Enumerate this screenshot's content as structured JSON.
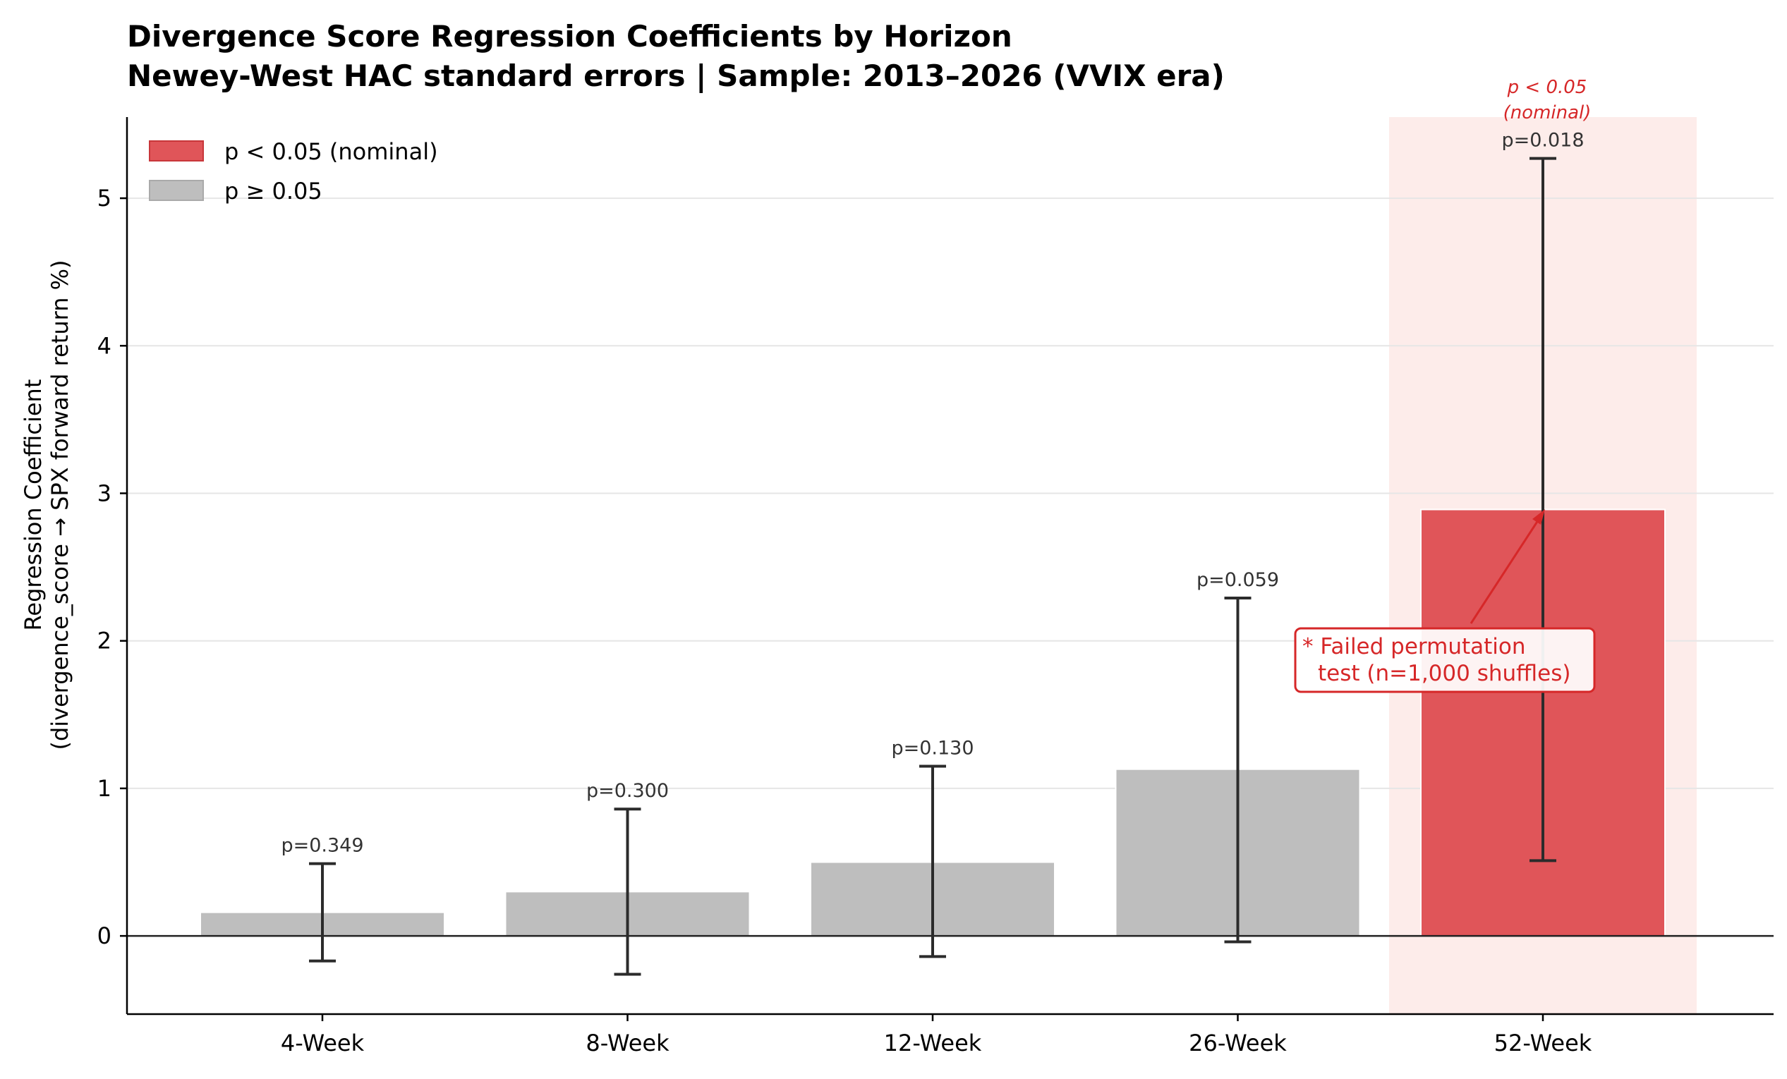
{
  "chart_data": {
    "type": "bar",
    "title": "Divergence Score Regression Coefficients by Horizon",
    "subtitle": "Newey-West HAC standard errors  |  Sample: 2013–2026 (VVIX era)",
    "ylabel_line1": "Regression Coefficient",
    "ylabel_line2": "(divergence_score → SPX forward return %)",
    "xlabel": "",
    "categories": [
      "4-Week",
      "8-Week",
      "12-Week",
      "26-Week",
      "52-Week"
    ],
    "values": [
      0.16,
      0.3,
      0.5,
      1.13,
      2.89
    ],
    "ci_low": [
      -0.17,
      -0.26,
      -0.14,
      -0.04,
      0.51
    ],
    "ci_high": [
      0.49,
      0.86,
      1.15,
      2.29,
      5.27
    ],
    "p_labels": [
      "p=0.349",
      "p=0.300",
      "p=0.130",
      "p=0.059",
      "p=0.018"
    ],
    "significant": [
      false,
      false,
      false,
      false,
      true
    ],
    "ylim": [
      -0.53,
      5.55
    ],
    "yticks": [
      0,
      1,
      2,
      3,
      4,
      5
    ],
    "grid": "horizontal",
    "legend_position": "top-left",
    "legend": [
      {
        "label": "p < 0.05 (nominal)",
        "color": "#e05559"
      },
      {
        "label": "p ≥ 0.05",
        "color": "#bebebe"
      }
    ],
    "sig_annotation_line1": "p < 0.05",
    "sig_annotation_line2": "(nominal)",
    "permutation_note_line1": "* Failed permutation",
    "permutation_note_line2": "test (n=1,000 shuffles)",
    "colors": {
      "significant": "#e05559",
      "nonsignificant": "#bebebe",
      "highlight_band": "#fdecea",
      "accent": "#d62728",
      "errorbar": "#2b2b2b"
    }
  }
}
